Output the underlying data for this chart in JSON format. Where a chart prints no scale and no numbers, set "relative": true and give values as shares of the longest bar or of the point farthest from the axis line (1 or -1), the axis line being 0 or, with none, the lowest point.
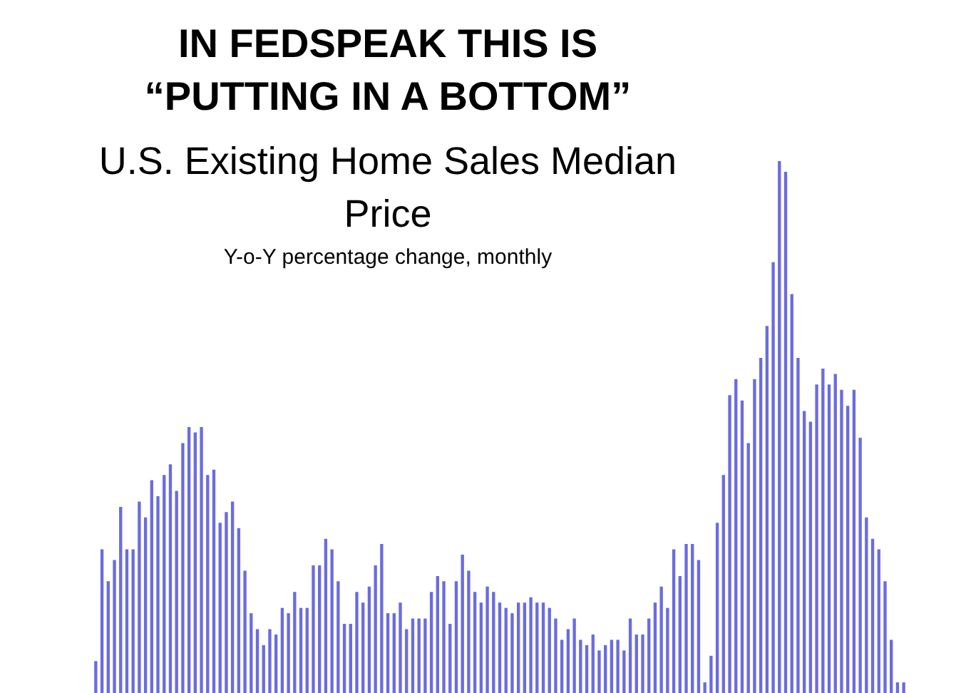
{
  "chart_data": {
    "type": "bar",
    "title": "IN FEDSPEAK THIS IS “PUTTING IN A BOTTOM”",
    "subtitle": "U.S. Existing Home Sales Median Price",
    "annotations": [
      "Y-o-Y percentage change, monthly"
    ],
    "relative": true,
    "color": "#6b6be0",
    "categories": [
      null,
      null,
      null,
      null,
      null,
      null,
      null,
      null,
      null,
      null,
      null,
      null,
      null,
      null,
      null,
      null,
      null,
      null,
      null,
      null,
      null,
      null,
      null,
      null,
      null,
      null,
      null,
      null,
      null,
      null,
      null,
      null,
      null,
      null,
      null,
      null,
      null,
      null,
      null,
      null,
      null,
      null,
      null,
      null,
      null,
      null,
      null,
      null,
      null,
      null,
      null,
      null,
      null,
      null,
      null,
      null,
      null,
      null,
      null,
      null,
      null,
      null,
      null,
      null,
      null,
      null,
      null,
      null,
      null,
      null,
      null,
      null,
      null,
      null,
      null,
      null,
      null,
      null,
      null,
      null,
      null,
      null,
      null,
      null,
      null,
      null,
      null,
      null,
      null,
      null,
      null,
      null,
      null,
      null,
      null,
      null,
      null,
      null,
      null,
      null,
      null,
      null,
      null,
      null,
      null,
      null,
      null,
      null,
      null,
      null,
      null,
      null,
      null,
      null,
      null,
      null,
      null,
      null,
      null,
      null,
      null,
      null,
      null,
      null,
      null,
      null,
      null,
      null,
      null,
      null,
      null
    ],
    "values": [
      0.06,
      0.27,
      0.21,
      0.25,
      0.35,
      0.27,
      0.27,
      0.36,
      0.33,
      0.4,
      0.37,
      0.41,
      0.43,
      0.38,
      0.47,
      0.5,
      0.49,
      0.5,
      0.41,
      0.42,
      0.32,
      0.34,
      0.36,
      0.31,
      0.23,
      0.15,
      0.12,
      0.09,
      0.12,
      0.11,
      0.16,
      0.15,
      0.19,
      0.16,
      0.16,
      0.24,
      0.24,
      0.29,
      0.27,
      0.21,
      0.13,
      0.13,
      0.19,
      0.17,
      0.2,
      0.24,
      0.28,
      0.15,
      0.15,
      0.17,
      0.12,
      0.14,
      0.14,
      0.14,
      0.19,
      0.22,
      0.21,
      0.13,
      0.21,
      0.26,
      0.23,
      0.19,
      0.17,
      0.2,
      0.19,
      0.17,
      0.16,
      0.15,
      0.17,
      0.17,
      0.18,
      0.17,
      0.17,
      0.16,
      0.14,
      0.1,
      0.12,
      0.14,
      0.1,
      0.09,
      0.11,
      0.08,
      0.09,
      0.1,
      0.1,
      0.08,
      0.14,
      0.11,
      0.11,
      0.14,
      0.17,
      0.2,
      0.16,
      0.27,
      0.22,
      0.28,
      0.28,
      0.25,
      0.02,
      0.07,
      0.32,
      0.41,
      0.56,
      0.59,
      0.55,
      0.47,
      0.59,
      0.63,
      0.69,
      0.81,
      1,
      0.98,
      0.75,
      0.63,
      0.53,
      0.51,
      0.58,
      0.61,
      0.58,
      0.6,
      0.57,
      0.54,
      0.57,
      0.48,
      0.33,
      0.29,
      0.27,
      0.21,
      0.1,
      0.02,
      0.02
    ]
  }
}
